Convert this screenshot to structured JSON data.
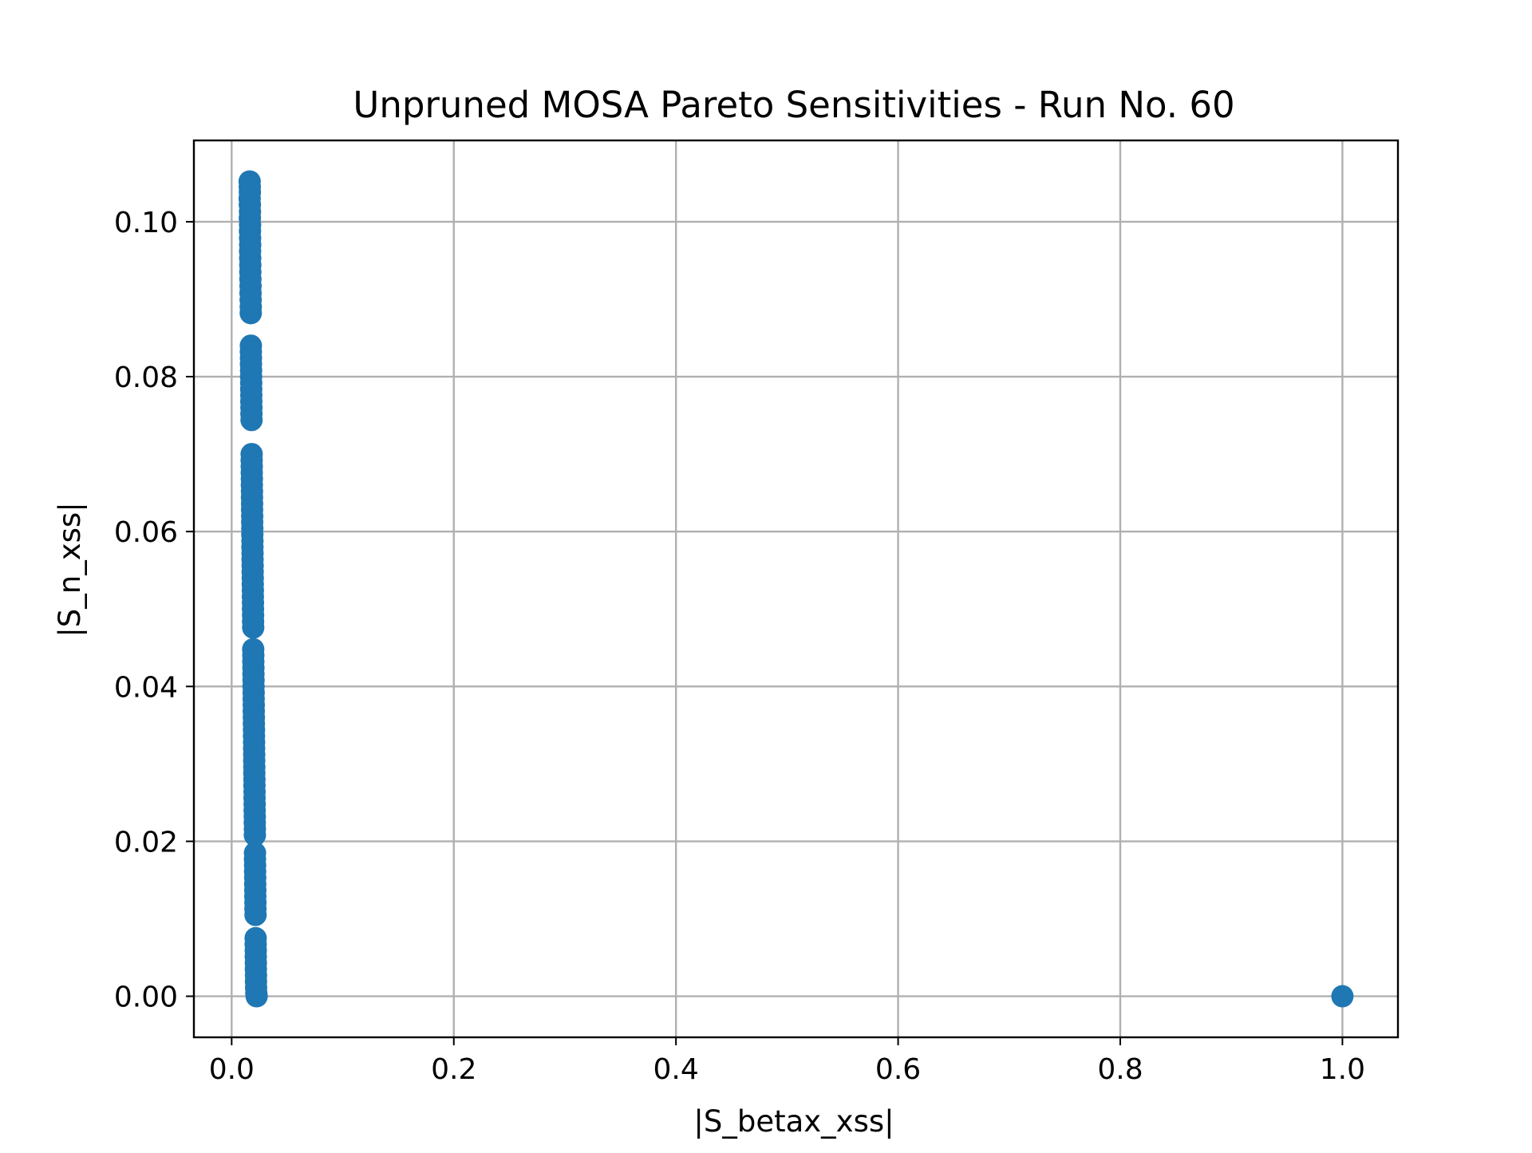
{
  "chart_data": {
    "type": "scatter",
    "title": "Unpruned MOSA Pareto Sensitivities - Run No. 60",
    "xlabel": "|S_betax_xss|",
    "ylabel": "|S_n_xss|",
    "xlim": [
      -0.034,
      1.05
    ],
    "ylim": [
      -0.0053,
      0.1105
    ],
    "xticks": [
      0.0,
      0.2,
      0.4,
      0.6,
      0.8,
      1.0
    ],
    "xtick_labels": [
      "0.0",
      "0.2",
      "0.4",
      "0.6",
      "0.8",
      "1.0"
    ],
    "yticks": [
      0.0,
      0.02,
      0.04,
      0.06,
      0.08,
      0.1
    ],
    "ytick_labels": [
      "0.00",
      "0.02",
      "0.04",
      "0.06",
      "0.08",
      "0.10"
    ],
    "grid": true,
    "legend": "none",
    "marker_color": "#1f77b4",
    "series": [
      {
        "points": [
          [
            0.0162,
            0.1052
          ],
          [
            0.0163,
            0.1045
          ],
          [
            0.0164,
            0.1038
          ],
          [
            0.0162,
            0.103
          ],
          [
            0.0164,
            0.1022
          ],
          [
            0.0165,
            0.1013
          ],
          [
            0.0164,
            0.1005
          ],
          [
            0.0166,
            0.0996
          ],
          [
            0.0165,
            0.0988
          ],
          [
            0.0166,
            0.0979
          ],
          [
            0.0167,
            0.097
          ],
          [
            0.0166,
            0.0962
          ],
          [
            0.0167,
            0.0953
          ],
          [
            0.0168,
            0.0944
          ],
          [
            0.0168,
            0.0935
          ],
          [
            0.0169,
            0.0926
          ],
          [
            0.017,
            0.0917
          ],
          [
            0.017,
            0.0908
          ],
          [
            0.0171,
            0.0899
          ],
          [
            0.0172,
            0.089
          ],
          [
            0.0172,
            0.0882
          ],
          [
            0.0173,
            0.084
          ],
          [
            0.0173,
            0.0832
          ],
          [
            0.0174,
            0.0824
          ],
          [
            0.0174,
            0.0816
          ],
          [
            0.0175,
            0.0808
          ],
          [
            0.0175,
            0.08
          ],
          [
            0.0176,
            0.0792
          ],
          [
            0.0176,
            0.0784
          ],
          [
            0.0177,
            0.0776
          ],
          [
            0.0177,
            0.0768
          ],
          [
            0.0178,
            0.076
          ],
          [
            0.0178,
            0.0752
          ],
          [
            0.0179,
            0.0744
          ],
          [
            0.018,
            0.07
          ],
          [
            0.018,
            0.0692
          ],
          [
            0.0181,
            0.0684
          ],
          [
            0.0181,
            0.0676
          ],
          [
            0.0182,
            0.0668
          ],
          [
            0.0182,
            0.066
          ],
          [
            0.0183,
            0.0652
          ],
          [
            0.0183,
            0.0644
          ],
          [
            0.0184,
            0.0636
          ],
          [
            0.0184,
            0.0628
          ],
          [
            0.0185,
            0.062
          ],
          [
            0.0185,
            0.0612
          ],
          [
            0.0186,
            0.0604
          ],
          [
            0.0186,
            0.0596
          ],
          [
            0.0187,
            0.0588
          ],
          [
            0.0187,
            0.058
          ],
          [
            0.0188,
            0.0572
          ],
          [
            0.0188,
            0.0564
          ],
          [
            0.0189,
            0.0556
          ],
          [
            0.0189,
            0.0548
          ],
          [
            0.019,
            0.054
          ],
          [
            0.019,
            0.0532
          ],
          [
            0.0191,
            0.0524
          ],
          [
            0.0191,
            0.0516
          ],
          [
            0.0192,
            0.0508
          ],
          [
            0.0192,
            0.05
          ],
          [
            0.0193,
            0.0492
          ],
          [
            0.0193,
            0.0484
          ],
          [
            0.0194,
            0.0476
          ],
          [
            0.0194,
            0.0448
          ],
          [
            0.0195,
            0.044
          ],
          [
            0.0195,
            0.0432
          ],
          [
            0.0196,
            0.0424
          ],
          [
            0.0196,
            0.0416
          ],
          [
            0.0197,
            0.0408
          ],
          [
            0.0197,
            0.04
          ],
          [
            0.0198,
            0.0392
          ],
          [
            0.0198,
            0.0384
          ],
          [
            0.0199,
            0.0376
          ],
          [
            0.0199,
            0.0368
          ],
          [
            0.02,
            0.036
          ],
          [
            0.02,
            0.0352
          ],
          [
            0.0201,
            0.0344
          ],
          [
            0.0201,
            0.0336
          ],
          [
            0.0202,
            0.0328
          ],
          [
            0.0202,
            0.032
          ],
          [
            0.0203,
            0.0312
          ],
          [
            0.0203,
            0.0304
          ],
          [
            0.0204,
            0.0296
          ],
          [
            0.0204,
            0.0288
          ],
          [
            0.0205,
            0.028
          ],
          [
            0.0205,
            0.0272
          ],
          [
            0.0206,
            0.0264
          ],
          [
            0.0206,
            0.0256
          ],
          [
            0.0207,
            0.0248
          ],
          [
            0.0207,
            0.024
          ],
          [
            0.0208,
            0.0232
          ],
          [
            0.0208,
            0.0224
          ],
          [
            0.0209,
            0.0216
          ],
          [
            0.0209,
            0.0208
          ],
          [
            0.021,
            0.0185
          ],
          [
            0.021,
            0.0177
          ],
          [
            0.0211,
            0.0169
          ],
          [
            0.0211,
            0.0161
          ],
          [
            0.0212,
            0.0153
          ],
          [
            0.0212,
            0.0145
          ],
          [
            0.0213,
            0.0137
          ],
          [
            0.0213,
            0.0129
          ],
          [
            0.0214,
            0.0121
          ],
          [
            0.0214,
            0.0113
          ],
          [
            0.0215,
            0.0105
          ],
          [
            0.0216,
            0.0075
          ],
          [
            0.0216,
            0.0067
          ],
          [
            0.0217,
            0.0059
          ],
          [
            0.0217,
            0.0051
          ],
          [
            0.0218,
            0.0043
          ],
          [
            0.0218,
            0.0035
          ],
          [
            0.0219,
            0.0027
          ],
          [
            0.0219,
            0.0019
          ],
          [
            0.022,
            0.0011
          ],
          [
            0.0222,
            0.0004
          ],
          [
            0.0225,
            0.0
          ],
          [
            1.0,
            0.0
          ]
        ]
      }
    ]
  }
}
